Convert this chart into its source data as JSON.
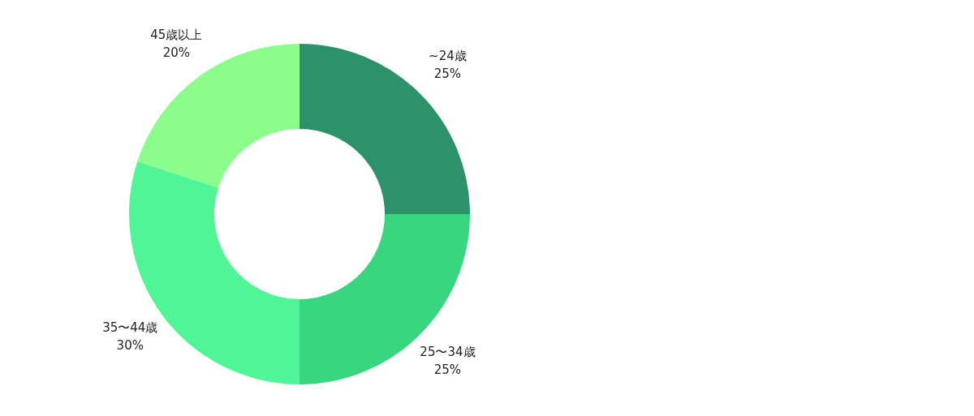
{
  "chart_data": {
    "type": "donut",
    "categories": [
      "~24歳",
      "25〜34歳",
      "35〜44歳",
      "45歳以上"
    ],
    "values": [
      25,
      25,
      30,
      20
    ],
    "value_labels": [
      "25%",
      "25%",
      "30%",
      "20%"
    ],
    "colors": [
      "#2b9269",
      "#38d67f",
      "#50f595",
      "#8afd8a"
    ],
    "legend": false
  }
}
